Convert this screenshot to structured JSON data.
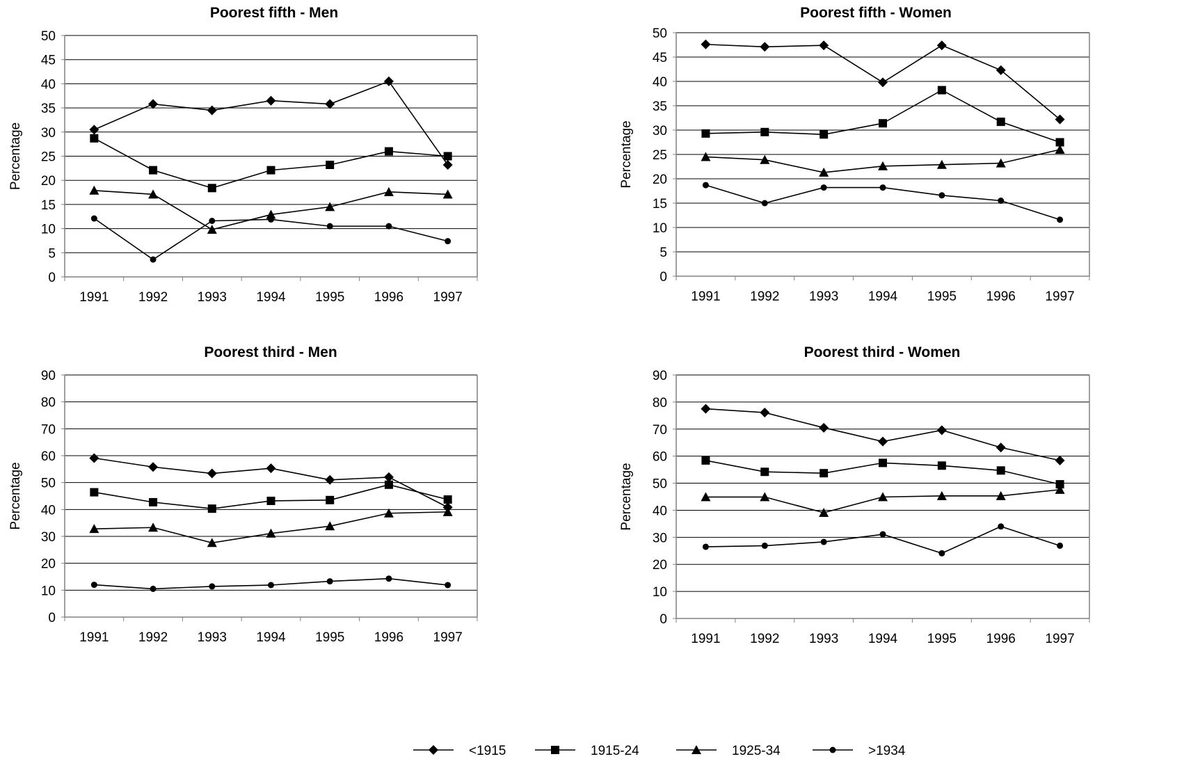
{
  "chart_data": [
    {
      "type": "line",
      "title": "Poorest fifth - Men",
      "xlabel": "",
      "ylabel": "Percentage",
      "x": [
        "1991",
        "1992",
        "1993",
        "1994",
        "1995",
        "1996",
        "1997"
      ],
      "ylim": [
        0,
        50
      ],
      "yticks": [
        0,
        5,
        10,
        15,
        20,
        25,
        30,
        35,
        40,
        45,
        50
      ],
      "grid": true,
      "series": [
        {
          "name": "<1915",
          "marker": "diamond",
          "values": [
            30.5,
            35.8,
            34.5,
            36.5,
            35.8,
            40.5,
            23.2
          ]
        },
        {
          "name": "1915-24",
          "marker": "square",
          "values": [
            28.7,
            22.1,
            18.4,
            22.1,
            23.2,
            26.0,
            25.0
          ]
        },
        {
          "name": "1925-34",
          "marker": "triangle",
          "values": [
            17.9,
            17.1,
            9.8,
            12.9,
            14.5,
            17.6,
            17.1
          ]
        },
        {
          "name": ">1934",
          "marker": "circle",
          "values": [
            12.1,
            3.6,
            11.6,
            11.9,
            10.5,
            10.5,
            7.4
          ]
        }
      ]
    },
    {
      "type": "line",
      "title": "Poorest fifth - Women",
      "xlabel": "",
      "ylabel": "Percentage",
      "x": [
        "1991",
        "1992",
        "1993",
        "1994",
        "1995",
        "1996",
        "1997"
      ],
      "ylim": [
        0,
        50
      ],
      "yticks": [
        0,
        5,
        10,
        15,
        20,
        25,
        30,
        35,
        40,
        45,
        50
      ],
      "grid": true,
      "series": [
        {
          "name": "<1915",
          "marker": "diamond",
          "values": [
            47.6,
            47.1,
            47.4,
            39.8,
            47.4,
            42.3,
            32.2
          ]
        },
        {
          "name": "1915-24",
          "marker": "square",
          "values": [
            29.3,
            29.6,
            29.1,
            31.4,
            38.2,
            31.7,
            27.5
          ]
        },
        {
          "name": "1925-34",
          "marker": "triangle",
          "values": [
            24.5,
            23.9,
            21.3,
            22.6,
            22.9,
            23.2,
            26.0
          ]
        },
        {
          "name": ">1934",
          "marker": "circle",
          "values": [
            18.7,
            15.0,
            18.2,
            18.2,
            16.6,
            15.5,
            11.6
          ]
        }
      ]
    },
    {
      "type": "line",
      "title": "Poorest third - Men",
      "xlabel": "",
      "ylabel": "Percentage",
      "x": [
        "1991",
        "1992",
        "1993",
        "1994",
        "1995",
        "1996",
        "1997"
      ],
      "ylim": [
        0,
        90
      ],
      "yticks": [
        0,
        10,
        20,
        30,
        40,
        50,
        60,
        70,
        80,
        90
      ],
      "grid": true,
      "series": [
        {
          "name": "<1915",
          "marker": "diamond",
          "values": [
            59.1,
            55.8,
            53.4,
            55.3,
            51.0,
            52.0,
            40.8
          ]
        },
        {
          "name": "1915-24",
          "marker": "square",
          "values": [
            46.4,
            42.7,
            40.3,
            43.2,
            43.5,
            49.2,
            43.7
          ]
        },
        {
          "name": "1925-34",
          "marker": "triangle",
          "values": [
            32.8,
            33.3,
            27.6,
            31.1,
            33.8,
            38.6,
            39.1
          ]
        },
        {
          "name": ">1934",
          "marker": "circle",
          "values": [
            12.0,
            10.5,
            11.4,
            11.9,
            13.3,
            14.3,
            11.9
          ]
        }
      ]
    },
    {
      "type": "line",
      "title": "Poorest third - Women",
      "xlabel": "",
      "ylabel": "Percentage",
      "x": [
        "1991",
        "1992",
        "1993",
        "1994",
        "1995",
        "1996",
        "1997"
      ],
      "ylim": [
        0,
        90
      ],
      "yticks": [
        0,
        10,
        20,
        30,
        40,
        50,
        60,
        70,
        80,
        90
      ],
      "grid": true,
      "series": [
        {
          "name": "<1915",
          "marker": "diamond",
          "values": [
            77.5,
            76.1,
            70.5,
            65.4,
            69.6,
            63.2,
            58.4
          ]
        },
        {
          "name": "1915-24",
          "marker": "square",
          "values": [
            58.4,
            54.2,
            53.7,
            57.5,
            56.5,
            54.7,
            49.6
          ]
        },
        {
          "name": "1925-34",
          "marker": "triangle",
          "values": [
            44.9,
            44.9,
            39.1,
            44.9,
            45.3,
            45.3,
            47.6
          ]
        },
        {
          "name": ">1934",
          "marker": "circle",
          "values": [
            26.5,
            26.9,
            28.3,
            31.1,
            24.1,
            34.0,
            26.9
          ]
        }
      ]
    }
  ],
  "legend": {
    "placement": "bottom-center",
    "items": [
      {
        "label": "<1915",
        "marker": "diamond"
      },
      {
        "label": "1915-24",
        "marker": "square"
      },
      {
        "label": "1925-34",
        "marker": "triangle"
      },
      {
        "label": ">1934",
        "marker": "circle"
      }
    ]
  },
  "colors": {
    "line": "#000000",
    "grid": "#000000",
    "axis": "#808080",
    "background": "#ffffff"
  }
}
